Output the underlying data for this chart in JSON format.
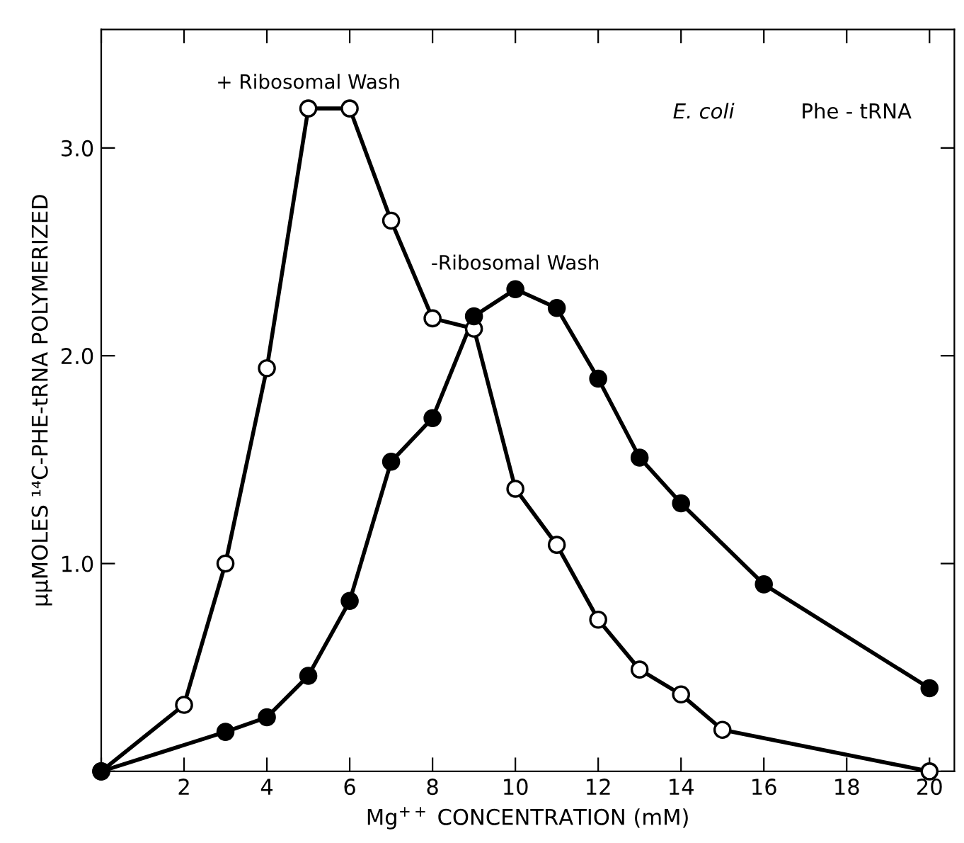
{
  "chart_data": {
    "type": "line",
    "xlabel": "Mg$^{++}$ CONCENTRATION (mM)",
    "ylabel": "μμMOLES ¹⁴C-PHE-tRNA POLYMERIZED",
    "annotations": [
      "E. coli",
      "Phe - tRNA"
    ],
    "series": [
      {
        "name": "+ Ribosomal Wash",
        "color": "#000000",
        "x": [
          0,
          2,
          3,
          4,
          5,
          6,
          7,
          8,
          9,
          10,
          11,
          12,
          13,
          14,
          15,
          20
        ],
        "values": [
          0,
          0.32,
          1.0,
          1.94,
          3.19,
          3.19,
          2.65,
          2.18,
          2.13,
          1.36,
          1.09,
          0.73,
          0.49,
          0.37,
          0.2,
          0
        ]
      },
      {
        "name": "-Ribosomal Wash",
        "color": "#000000",
        "x": [
          0,
          3,
          4,
          5,
          6,
          7,
          8,
          9,
          10,
          11,
          12,
          13,
          14,
          16,
          20
        ],
        "values": [
          0,
          0.19,
          0.26,
          0.46,
          0.82,
          1.49,
          1.7,
          2.19,
          2.32,
          2.23,
          1.89,
          1.51,
          1.29,
          0.9,
          0.4
        ]
      }
    ],
    "marker": "circle",
    "line_style": "solid",
    "grid": false,
    "legend": false,
    "xlim": [
      0,
      20.6
    ],
    "xticks": [
      {
        "value": 0,
        "label": null
      },
      2,
      4,
      6,
      8,
      10,
      12,
      14,
      16,
      18,
      20
    ],
    "ylim": [
      0,
      3.57
    ],
    "yticks": [
      {
        "value": 0,
        "label": null
      },
      {
        "value": 1,
        "label": "1.0"
      },
      {
        "value": 2,
        "label": "2.0"
      },
      {
        "value": 3,
        "label": "3.0"
      }
    ]
  }
}
